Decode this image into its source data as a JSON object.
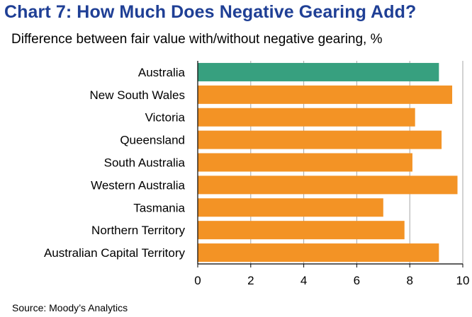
{
  "title": "Chart 7: How Much Does Negative Gearing Add?",
  "subtitle": "Difference between fair value with/without negative gearing, %",
  "source": "Source: Moody’s Analytics",
  "colors": {
    "highlight": "#37a07f",
    "bar": "#f39325",
    "grid": "#a6a6a6",
    "title": "#1f3f95"
  },
  "chart_data": {
    "type": "bar",
    "orientation": "horizontal",
    "categories": [
      "Australia",
      "New South Wales",
      "Victoria",
      "Queensland",
      "South Australia",
      "Western Australia",
      "Tasmania",
      "Northern Territory",
      "Australian Capital Territory"
    ],
    "values": [
      9.1,
      9.6,
      8.2,
      9.2,
      8.1,
      9.8,
      7.0,
      7.8,
      9.1
    ],
    "highlight_category": "Australia",
    "xlim": [
      0,
      10
    ],
    "xticks": [
      0,
      2,
      4,
      6,
      8,
      10
    ],
    "grid": "vertical",
    "legend": "none"
  }
}
